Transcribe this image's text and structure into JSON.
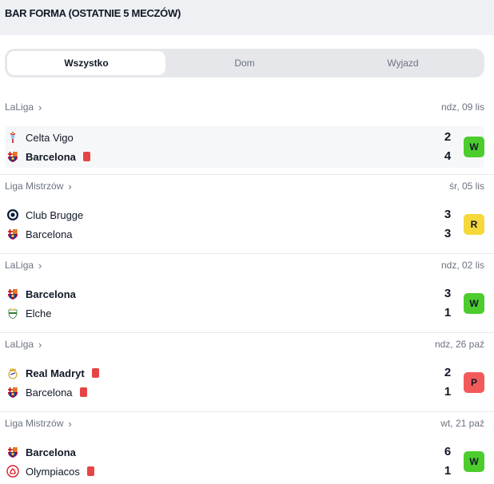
{
  "header": {
    "title": "BAR FORMA (OSTATNIE 5 MECZÓW)"
  },
  "tabs": [
    {
      "label": "Wszystko",
      "active": true
    },
    {
      "label": "Dom",
      "active": false
    },
    {
      "label": "Wyjazd",
      "active": false
    }
  ],
  "colors": {
    "win": "#4ccd2d",
    "draw": "#f5d83a",
    "loss": "#f25a5a",
    "red_card": "#e64545"
  },
  "matches": [
    {
      "league": "LaLiga",
      "date": "ndz, 09 lis",
      "home": {
        "name": "Celta Vigo",
        "crest": "celta-crest-icon",
        "score": "2",
        "bold": false,
        "red_card": false
      },
      "away": {
        "name": "Barcelona",
        "crest": "barcelona-crest-icon",
        "score": "4",
        "bold": true,
        "red_card": true
      },
      "result": "W",
      "result_type": "win"
    },
    {
      "league": "Liga Mistrzów",
      "date": "śr, 05 lis",
      "home": {
        "name": "Club Brugge",
        "crest": "brugge-crest-icon",
        "score": "3",
        "bold": false,
        "red_card": false
      },
      "away": {
        "name": "Barcelona",
        "crest": "barcelona-crest-icon",
        "score": "3",
        "bold": false,
        "red_card": false
      },
      "result": "R",
      "result_type": "draw"
    },
    {
      "league": "LaLiga",
      "date": "ndz, 02 lis",
      "home": {
        "name": "Barcelona",
        "crest": "barcelona-crest-icon",
        "score": "3",
        "bold": true,
        "red_card": false
      },
      "away": {
        "name": "Elche",
        "crest": "elche-crest-icon",
        "score": "1",
        "bold": false,
        "red_card": false
      },
      "result": "W",
      "result_type": "win"
    },
    {
      "league": "LaLiga",
      "date": "ndz, 26 paź",
      "home": {
        "name": "Real Madryt",
        "crest": "real-madrid-crest-icon",
        "score": "2",
        "bold": true,
        "red_card": true
      },
      "away": {
        "name": "Barcelona",
        "crest": "barcelona-crest-icon",
        "score": "1",
        "bold": false,
        "red_card": true
      },
      "result": "P",
      "result_type": "loss"
    },
    {
      "league": "Liga Mistrzów",
      "date": "wt, 21 paź",
      "home": {
        "name": "Barcelona",
        "crest": "barcelona-crest-icon",
        "score": "6",
        "bold": true,
        "red_card": false
      },
      "away": {
        "name": "Olympiacos",
        "crest": "olympiacos-crest-icon",
        "score": "1",
        "bold": false,
        "red_card": true
      },
      "result": "W",
      "result_type": "win"
    }
  ]
}
